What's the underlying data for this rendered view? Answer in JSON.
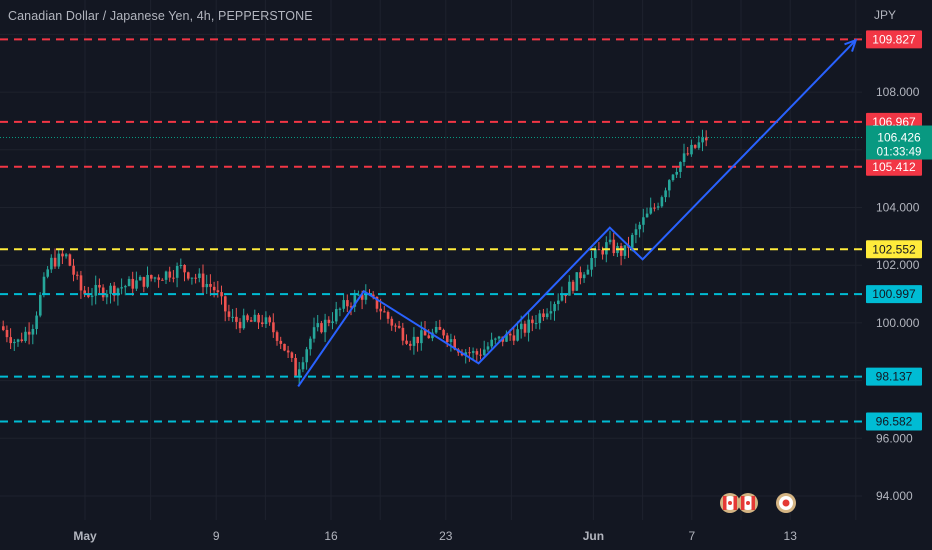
{
  "header": {
    "title": "Canadian Dollar / Japanese Yen, 4h, PEPPERSTONE",
    "currency": "JPY"
  },
  "colors": {
    "background": "#131722",
    "grid": "#1e222d",
    "axis_text": "#b2b5be",
    "up_candle": "#26a69a",
    "down_candle": "#ef5350",
    "red_level": "#f23645",
    "yellow_level": "#ffeb3b",
    "cyan_level": "#00bcd4",
    "projection": "#2962ff",
    "price_label": "#089981"
  },
  "chart_data": {
    "type": "candlestick",
    "title": "Canadian Dollar / Japanese Yen, 4h, PEPPERSTONE",
    "symbol": "CADJPY",
    "interval": "4h",
    "source": "PEPPERSTONE",
    "y_axis": {
      "unit": "JPY",
      "ticks": [
        "108.000",
        "104.000",
        "102.000",
        "100.000",
        "96.000",
        "94.000"
      ],
      "range": [
        93.3,
        111.2
      ]
    },
    "x_axis": {
      "ticks": [
        "May",
        "9",
        "16",
        "23",
        "Jun",
        "7",
        "13"
      ]
    },
    "grid": true,
    "current_price": {
      "value": "106.426",
      "countdown": "01:33:49"
    },
    "horizontal_levels": [
      {
        "label": "109.827",
        "value": 109.827,
        "color": "red"
      },
      {
        "label": "106.967",
        "value": 106.967,
        "color": "red"
      },
      {
        "label": "105.412",
        "value": 105.412,
        "color": "red"
      },
      {
        "label": "102.552",
        "value": 102.552,
        "color": "yellow"
      },
      {
        "label": "100.997",
        "value": 100.997,
        "color": "cyan"
      },
      {
        "label": "98.137",
        "value": 98.137,
        "color": "cyan"
      },
      {
        "label": "96.582",
        "value": 96.582,
        "color": "cyan"
      }
    ],
    "projection_path": [
      {
        "date": "May 14",
        "price": 97.8
      },
      {
        "date": "May 18",
        "price": 101.1
      },
      {
        "date": "May 25",
        "price": 98.6
      },
      {
        "date": "Jun 2",
        "price": 103.3
      },
      {
        "date": "Jun 4",
        "price": 102.2
      },
      {
        "date": "Jun 17",
        "price": 109.8
      }
    ],
    "price_path": [
      {
        "date": "Apr 25",
        "price": 100.4
      },
      {
        "date": "Apr 27",
        "price": 99.3
      },
      {
        "date": "Apr 28",
        "price": 100.0
      },
      {
        "date": "Apr 29",
        "price": 102.1
      },
      {
        "date": "Apr 30",
        "price": 102.3
      },
      {
        "date": "May 1",
        "price": 101.0
      },
      {
        "date": "May 3",
        "price": 101.2
      },
      {
        "date": "May 5",
        "price": 101.5
      },
      {
        "date": "May 7",
        "price": 101.9
      },
      {
        "date": "May 9",
        "price": 101.2
      },
      {
        "date": "May 10",
        "price": 100.1
      },
      {
        "date": "May 11",
        "price": 100.0
      },
      {
        "date": "May 12",
        "price": 100.1
      },
      {
        "date": "May 13",
        "price": 99.5
      },
      {
        "date": "May 14",
        "price": 98.3
      },
      {
        "date": "May 15",
        "price": 99.6
      },
      {
        "date": "May 17",
        "price": 100.6
      },
      {
        "date": "May 18",
        "price": 101.0
      },
      {
        "date": "May 19",
        "price": 100.6
      },
      {
        "date": "May 20",
        "price": 99.9
      },
      {
        "date": "May 21",
        "price": 99.4
      },
      {
        "date": "May 23",
        "price": 99.7
      },
      {
        "date": "May 24",
        "price": 99.1
      },
      {
        "date": "May 25",
        "price": 98.9
      },
      {
        "date": "May 26",
        "price": 99.3
      },
      {
        "date": "May 28",
        "price": 99.8
      },
      {
        "date": "May 30",
        "price": 100.9
      },
      {
        "date": "May 31",
        "price": 101.4
      },
      {
        "date": "Jun 1",
        "price": 102.2
      },
      {
        "date": "Jun 2",
        "price": 102.7
      },
      {
        "date": "Jun 3",
        "price": 102.4
      },
      {
        "date": "Jun 4",
        "price": 103.4
      },
      {
        "date": "Jun 5",
        "price": 104.1
      },
      {
        "date": "Jun 6",
        "price": 105.3
      },
      {
        "date": "Jun 7",
        "price": 105.9
      },
      {
        "date": "Jun 8",
        "price": 106.4
      }
    ],
    "event_icons": [
      {
        "icon": "canada-flag-icon"
      },
      {
        "icon": "canada-flag-icon"
      },
      {
        "icon": "japan-flag-icon"
      }
    ]
  }
}
